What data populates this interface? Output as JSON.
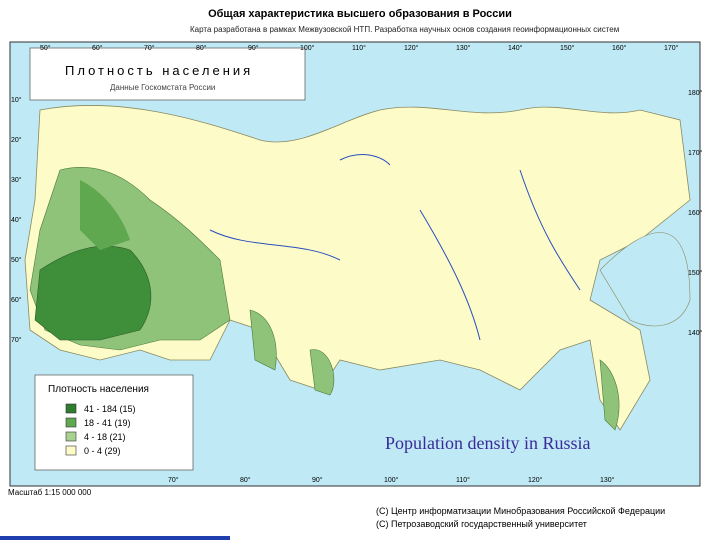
{
  "header": {
    "title": "Общая характеристика высшего образования в России",
    "subtitle": "Карта разработана в рамках Межвузовской НТП. Разработка научных основ создания геоинформационных систем"
  },
  "map": {
    "box_title": "Плотность населения",
    "box_subtitle": "Данные Госкомстата России",
    "caption": "Population density in Russia",
    "graticule": {
      "top": [
        "50°",
        "60°",
        "70°",
        "80°",
        "90°",
        "100°",
        "110°",
        "120°",
        "130°",
        "140°",
        "150°",
        "160°",
        "170°"
      ],
      "left": [
        "10°",
        "20°",
        "30°",
        "40°",
        "50°",
        "60°",
        "70°"
      ],
      "right": [
        "180°",
        "170°",
        "160°",
        "150°",
        "140°"
      ],
      "bottom": [
        "70°",
        "80°",
        "90°",
        "100°",
        "110°",
        "120°",
        "130°"
      ]
    }
  },
  "legend": {
    "title": "Плотность населения",
    "items": [
      "41 - 184  (15)",
      "18 - 41  (19)",
      "4 - 18  (21)",
      "0 - 4  (29)"
    ]
  },
  "footer": {
    "scale": "Масштаб 1:15 000 000",
    "credits": [
      "(С) Центр информатизации Минобразования Российской Федерации",
      "(С) Петрозаводский государственный университет"
    ]
  }
}
